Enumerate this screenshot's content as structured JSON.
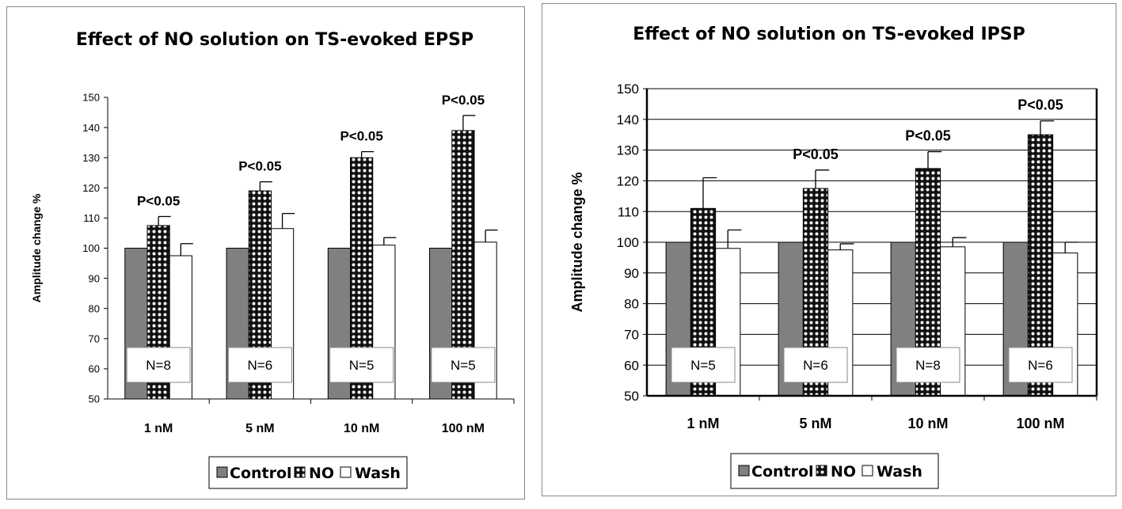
{
  "colors": {
    "control": "#808080",
    "no": "#111111",
    "wash": "#ffffff",
    "axis": "#000000",
    "grid": "#000000"
  },
  "chart_data": [
    {
      "type": "bar",
      "title": "Effect of NO solution on TS-evoked EPSP",
      "xlabel": "",
      "ylabel": "Amplitude change %",
      "ylim": [
        50,
        150
      ],
      "yticks": [
        "50",
        "60",
        "70",
        "80",
        "90",
        "100",
        "110",
        "120",
        "130",
        "140",
        "150"
      ],
      "grid": false,
      "categories": [
        "1 nM",
        "5 nM",
        "10 nM",
        "100 nM"
      ],
      "series": [
        {
          "name": "Control",
          "values": [
            100,
            100,
            100,
            100
          ],
          "errors": [
            0,
            0,
            0,
            0
          ]
        },
        {
          "name": "NO",
          "values": [
            107.5,
            119,
            130,
            139
          ],
          "errors": [
            3,
            3,
            2,
            5
          ]
        },
        {
          "name": "Wash",
          "values": [
            97.5,
            106.5,
            101,
            102
          ],
          "errors": [
            4,
            5,
            2.5,
            4
          ]
        }
      ],
      "annotations": [
        "P<0.05",
        "P<0.05",
        "P<0.05",
        "P<0.05"
      ],
      "n_labels": [
        "N=8",
        "N=6",
        "N=5",
        "N=5"
      ],
      "legend_position": "bottom"
    },
    {
      "type": "bar",
      "title": "Effect of NO solution on TS-evoked IPSP",
      "xlabel": "",
      "ylabel": "Amplitude change %",
      "ylim": [
        50,
        150
      ],
      "yticks": [
        "50",
        "60",
        "70",
        "80",
        "90",
        "100",
        "110",
        "120",
        "130",
        "140",
        "150"
      ],
      "grid": true,
      "categories": [
        "1 nM",
        "5 nM",
        "10 nM",
        "100 nM"
      ],
      "series": [
        {
          "name": "Control",
          "values": [
            100,
            100,
            100,
            100
          ],
          "errors": [
            0,
            0,
            0,
            0
          ]
        },
        {
          "name": "NO",
          "values": [
            111,
            117.5,
            124,
            135
          ],
          "errors": [
            10,
            6,
            5.5,
            4.5
          ]
        },
        {
          "name": "Wash",
          "values": [
            98,
            97.5,
            98.5,
            96.5
          ],
          "errors": [
            6,
            2,
            3,
            3.5
          ]
        }
      ],
      "annotations": [
        "",
        "P<0.05",
        "P<0.05",
        "P<0.05"
      ],
      "n_labels": [
        "N=5",
        "N=6",
        "N=8",
        "N=6"
      ],
      "legend_position": "bottom"
    }
  ],
  "legend_labels": [
    "Control",
    "NO",
    "Wash"
  ]
}
